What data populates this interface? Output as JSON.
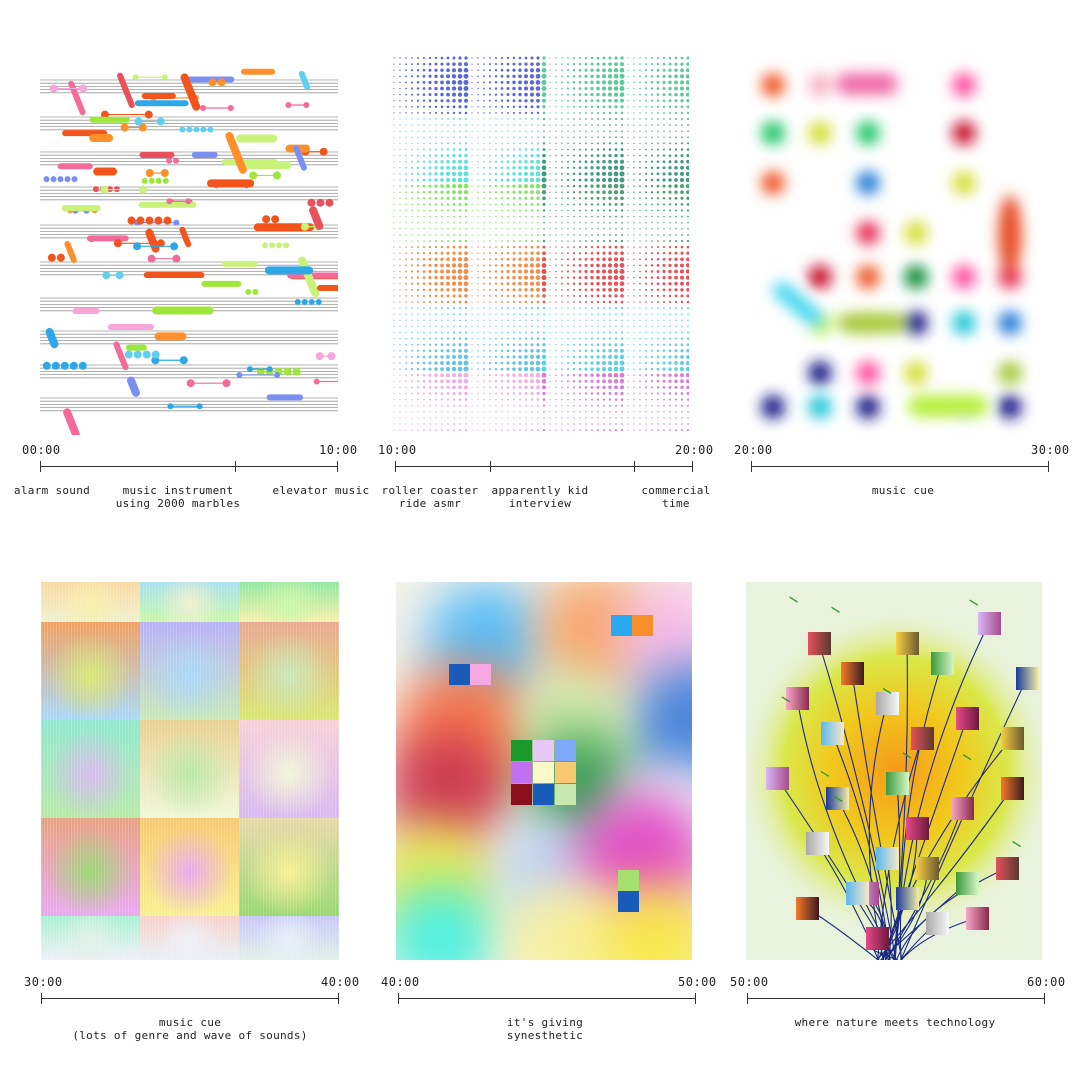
{
  "timeline": [
    {
      "start": "00:00",
      "end": "10:00",
      "segments": [
        {
          "label": "alarm sound"
        },
        {
          "label": "music instrument\nusing 2000 marbles"
        },
        {
          "label": "elevator music"
        }
      ]
    },
    {
      "start": "10:00",
      "end": "20:00",
      "segments": [
        {
          "label": "roller coaster\nride asmr"
        },
        {
          "label": "apparently kid\ninterview"
        },
        {
          "label": "commercial\ntime"
        }
      ]
    },
    {
      "start": "20:00",
      "end": "30:00",
      "segments": [
        {
          "label": "music cue"
        }
      ]
    },
    {
      "start": "30:00",
      "end": "40:00",
      "segments": [
        {
          "label": "music cue\n(lots of genre and wave of sounds)"
        }
      ]
    },
    {
      "start": "40:00",
      "end": "50:00",
      "segments": [
        {
          "label": "it's giving\nsynesthetic"
        }
      ]
    },
    {
      "start": "50:00",
      "end": "60:00",
      "segments": [
        {
          "label": "where nature meets technology"
        }
      ]
    }
  ]
}
